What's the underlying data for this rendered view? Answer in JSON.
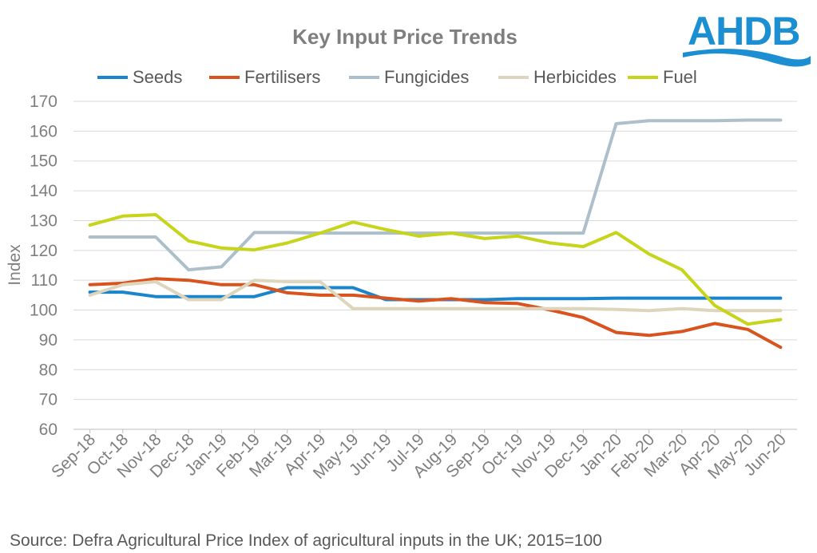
{
  "logo": {
    "text": "AHDB"
  },
  "source": "Source: Defra Agricultural Price Index of agricultural inputs in the UK; 2015=100",
  "chart_data": {
    "type": "line",
    "title": "Key Input Price Trends",
    "xlabel": "",
    "ylabel": "Index",
    "ylim": [
      60,
      170
    ],
    "yticks": [
      60,
      70,
      80,
      90,
      100,
      110,
      120,
      130,
      140,
      150,
      160,
      170
    ],
    "grid": true,
    "legend_position": "top",
    "categories": [
      "Sep-18",
      "Oct-18",
      "Nov-18",
      "Dec-18",
      "Jan-19",
      "Feb-19",
      "Mar-19",
      "Apr-19",
      "May-19",
      "Jun-19",
      "Jul-19",
      "Aug-19",
      "Sep-19",
      "Oct-19",
      "Nov-19",
      "Dec-19",
      "Jan-20",
      "Feb-20",
      "Mar-20",
      "Apr-20",
      "May-20",
      "Jun-20"
    ],
    "series": [
      {
        "name": "Seeds",
        "color": "#1a85cc",
        "values": [
          106,
          106,
          104.5,
          104.5,
          104.5,
          104.5,
          107.5,
          107.5,
          107.5,
          103.5,
          103.5,
          103.5,
          103.5,
          103.8,
          103.8,
          103.8,
          104,
          104,
          104,
          104,
          104,
          104
        ]
      },
      {
        "name": "Fertilisers",
        "color": "#d9531e",
        "values": [
          108.5,
          109,
          110.5,
          110,
          108.5,
          108.5,
          105.8,
          105,
          105,
          104,
          103,
          103.8,
          102.5,
          102.2,
          100,
          97.5,
          92.5,
          91.5,
          92.8,
          95.5,
          93.5,
          87.5
        ]
      },
      {
        "name": "Fungicides",
        "color": "#aebfcc",
        "values": [
          124.5,
          124.5,
          124.5,
          113.5,
          114.5,
          126,
          126,
          125.8,
          125.8,
          125.8,
          125.8,
          125.8,
          125.8,
          125.8,
          125.8,
          125.8,
          162.5,
          163.5,
          163.5,
          163.5,
          163.7,
          163.7
        ]
      },
      {
        "name": "Herbicides",
        "color": "#ddd6bc",
        "values": [
          105,
          108.5,
          109.5,
          103.5,
          103.5,
          110,
          109.5,
          109.5,
          100.5,
          100.5,
          100.5,
          100.5,
          100.5,
          100.5,
          100.5,
          100.5,
          100.2,
          99.8,
          100.5,
          99.8,
          99.8,
          99.8
        ]
      },
      {
        "name": "Fuel",
        "color": "#c6d41a",
        "values": [
          128.5,
          131.5,
          132,
          123.2,
          120.8,
          120.2,
          122.5,
          125.8,
          129.5,
          127,
          124.8,
          125.8,
          124,
          124.8,
          122.5,
          121.3,
          126,
          118.8,
          113.5,
          101.5,
          95.3,
          96.8
        ]
      }
    ]
  }
}
